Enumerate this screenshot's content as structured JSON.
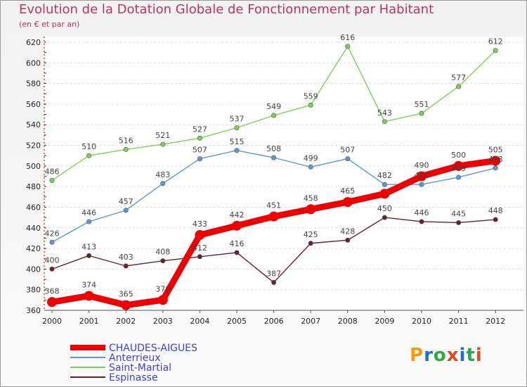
{
  "title": "Evolution de la Dotation Globale de Fonctionnement par Habitant",
  "subtitle": "(en € et par an)",
  "logo": {
    "text": "Proxiti",
    "colors": [
      "#f39c12",
      "#1f6fd1",
      "#2aa84a",
      "#e0491c",
      "#1f6fd1",
      "#2aa84a",
      "#e0491c"
    ]
  },
  "chart_data": {
    "type": "line",
    "x": [
      "2000",
      "2001",
      "2002",
      "2003",
      "2004",
      "2005",
      "2006",
      "2007",
      "2008",
      "2009",
      "2010",
      "2011",
      "2012"
    ],
    "ylim": [
      360,
      620
    ],
    "yticks": [
      360,
      380,
      400,
      420,
      440,
      460,
      480,
      500,
      520,
      540,
      560,
      580,
      600,
      620
    ],
    "grid": "horizontal",
    "legend_position": "bottom-left",
    "series": [
      {
        "name": "CHAUDES-AIGUES",
        "color": "#ee0000",
        "values": [
          368,
          374,
          365,
          370,
          433,
          442,
          451,
          458,
          465,
          473,
          490,
          500,
          505
        ],
        "labels": [
          "368",
          "374",
          "365",
          "370",
          "433",
          "442",
          "451",
          "458",
          "465",
          "",
          "490",
          "500",
          "505"
        ]
      },
      {
        "name": "Anterrieux",
        "color": "#5b9ad0",
        "values": [
          426,
          446,
          457,
          483,
          507,
          515,
          508,
          499,
          507,
          482,
          482,
          489,
          498
        ],
        "labels": [
          "426",
          "446",
          "457",
          "483",
          "507",
          "515",
          "508",
          "499",
          "507",
          "482",
          "482",
          "489",
          "498"
        ]
      },
      {
        "name": "Saint-Martial",
        "color": "#7fd058",
        "values": [
          486,
          510,
          516,
          521,
          527,
          537,
          549,
          559,
          616,
          543,
          551,
          577,
          612
        ],
        "labels": [
          "486",
          "510",
          "516",
          "521",
          "527",
          "537",
          "549",
          "559",
          "616",
          "543",
          "551",
          "577",
          "612"
        ]
      },
      {
        "name": "Espinasse",
        "color": "#6b1f28",
        "values": [
          400,
          413,
          403,
          408,
          412,
          416,
          387,
          425,
          428,
          450,
          446,
          445,
          448
        ],
        "labels": [
          "400",
          "413",
          "403",
          "408",
          "412",
          "416",
          "387",
          "425",
          "428",
          "450",
          "446",
          "445",
          "448"
        ]
      }
    ]
  }
}
